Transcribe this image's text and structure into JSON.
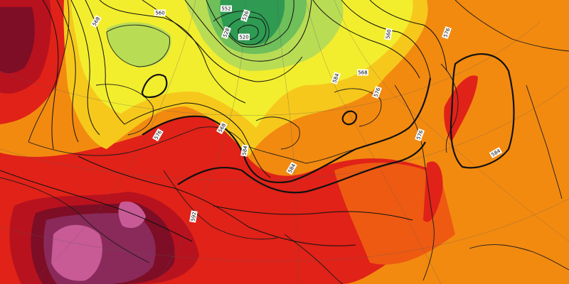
{
  "map": {
    "type": "geopotential-height-temperature-map",
    "contour_labels": [
      {
        "id": "c1",
        "text": "568"
      },
      {
        "id": "c2",
        "text": "560"
      },
      {
        "id": "c3",
        "text": "552"
      },
      {
        "id": "c4",
        "text": "536"
      },
      {
        "id": "c5",
        "text": "528"
      },
      {
        "id": "c6",
        "text": "520"
      },
      {
        "id": "c7",
        "text": "560"
      },
      {
        "id": "c8",
        "text": "568"
      },
      {
        "id": "c9",
        "text": "576"
      },
      {
        "id": "c10",
        "text": "584"
      },
      {
        "id": "c11",
        "text": "576"
      },
      {
        "id": "c12",
        "text": "584"
      },
      {
        "id": "c13",
        "text": "584"
      },
      {
        "id": "c14",
        "text": "592"
      },
      {
        "id": "c15",
        "text": "576"
      },
      {
        "id": "c16",
        "text": "584"
      },
      {
        "id": "c17",
        "text": "576"
      },
      {
        "id": "c18",
        "text": "568"
      }
    ],
    "colors": {
      "deep_green": "#2e9a52",
      "green": "#6fbf5a",
      "light_green": "#b9dc55",
      "yellow": "#f2ee2e",
      "yellow_orange": "#f6c81c",
      "orange": "#f28a10",
      "red_orange": "#ee5a12",
      "red": "#e02218",
      "dark_red": "#b8121e",
      "maroon": "#7d0e26",
      "purple": "#8a2a5a",
      "pink": "#c85a96"
    }
  }
}
